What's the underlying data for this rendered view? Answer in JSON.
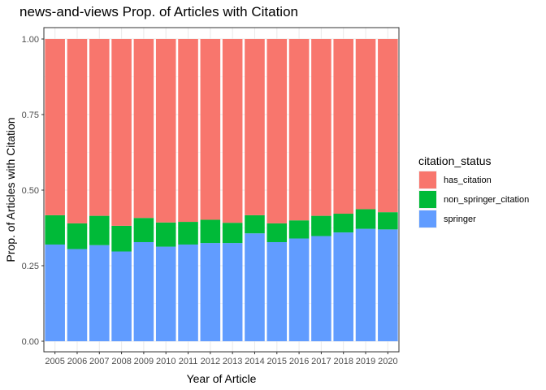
{
  "chart_data": {
    "type": "bar",
    "stacked": true,
    "title": "news-and-views Prop. of Articles with Citation",
    "xlabel": "Year of Article",
    "ylabel": "Prop. of Articles with Citation",
    "ylim": [
      0,
      1
    ],
    "yticks": [
      "0.00",
      "0.25",
      "0.50",
      "0.75",
      "1.00"
    ],
    "categories": [
      "2005",
      "2006",
      "2007",
      "2008",
      "2009",
      "2010",
      "2011",
      "2012",
      "2013",
      "2014",
      "2015",
      "2016",
      "2017",
      "2018",
      "2019",
      "2020"
    ],
    "series": [
      {
        "name": "springer",
        "color": "#619CFF",
        "values": [
          0.32,
          0.305,
          0.318,
          0.297,
          0.328,
          0.313,
          0.32,
          0.325,
          0.325,
          0.357,
          0.328,
          0.34,
          0.348,
          0.36,
          0.372,
          0.37
        ]
      },
      {
        "name": "non_springer_citation",
        "color": "#00BA38",
        "values": [
          0.097,
          0.085,
          0.097,
          0.085,
          0.08,
          0.08,
          0.075,
          0.077,
          0.067,
          0.06,
          0.062,
          0.06,
          0.067,
          0.062,
          0.065,
          0.057
        ]
      },
      {
        "name": "has_citation",
        "color": "#F8766D",
        "values": [
          0.583,
          0.61,
          0.585,
          0.618,
          0.592,
          0.607,
          0.605,
          0.598,
          0.608,
          0.583,
          0.61,
          0.6,
          0.585,
          0.578,
          0.563,
          0.573
        ]
      }
    ],
    "legend": {
      "title": "citation_status",
      "position": "right",
      "entries": [
        "has_citation",
        "non_springer_citation",
        "springer"
      ]
    },
    "grid": true,
    "panel_border": true
  }
}
